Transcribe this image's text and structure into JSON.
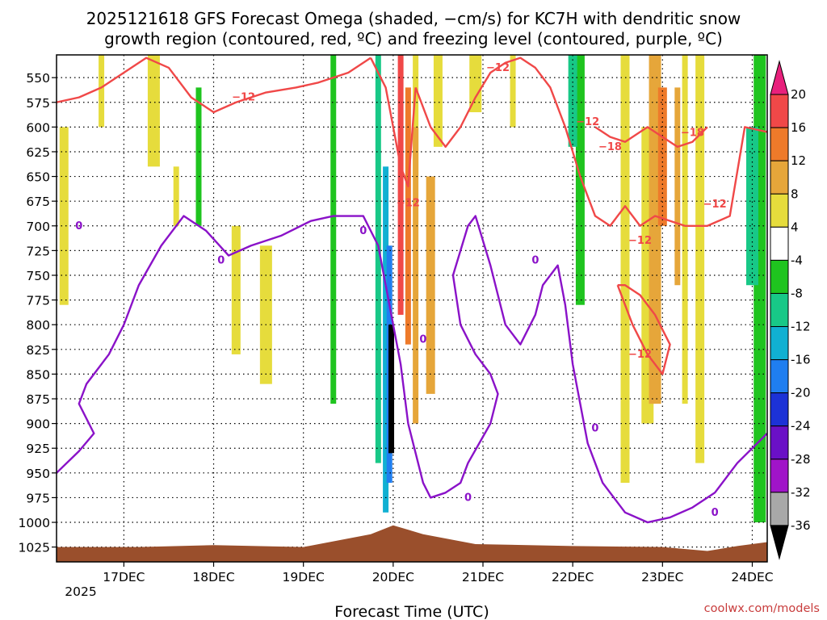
{
  "chart_data": {
    "type": "time-height cross section",
    "title_line1": "2025121618 GFS Forecast Omega (shaded, −cm/s) for KC7H with dendritic snow",
    "title_line2": "growth region (contoured, red, ºC) and freezing level (contoured, purple, ºC)",
    "xlabel": "Forecast Time (UTC)",
    "credit": "coolwx.com/models",
    "year_label": "2025",
    "x_range_hours": [
      -12,
      178
    ],
    "x_ticks": [
      {
        "label": "17DEC",
        "hour": 6
      },
      {
        "label": "18DEC",
        "hour": 30
      },
      {
        "label": "19DEC",
        "hour": 54
      },
      {
        "label": "20DEC",
        "hour": 78
      },
      {
        "label": "21DEC",
        "hour": 102
      },
      {
        "label": "22DEC",
        "hour": 126
      },
      {
        "label": "23DEC",
        "hour": 150
      },
      {
        "label": "24DEC",
        "hour": 174
      }
    ],
    "y_range_hPa": [
      527,
      1040
    ],
    "y_ticks": [
      550,
      575,
      600,
      625,
      650,
      675,
      700,
      725,
      750,
      775,
      800,
      825,
      850,
      875,
      900,
      925,
      950,
      975,
      1000,
      1025
    ],
    "colorbar": {
      "labels": [
        "20",
        "16",
        "12",
        "8",
        "4",
        "-4",
        "-8",
        "-12",
        "-16",
        "-20",
        "-24",
        "-28",
        "-32",
        "-36"
      ],
      "colors": [
        "#e8207c",
        "#f04848",
        "#ee7a2a",
        "#e6a63a",
        "#e6dc3c",
        "#ffffff",
        "#1fc41f",
        "#18c887",
        "#11b0d2",
        "#1f7ef0",
        "#1c32d6",
        "#6a10c6",
        "#a014c8",
        "#a8a8a8",
        "#000000"
      ]
    },
    "omega_shading": [
      {
        "name": "yellow-4",
        "color": "#e6dc3c",
        "patches": [
          {
            "h": 0,
            "p0": 527,
            "p1": 600
          },
          {
            "h": -10,
            "p0": 600,
            "p1": 780
          },
          {
            "h": 14,
            "p0": 527,
            "p1": 640
          },
          {
            "h": 20,
            "p0": 640,
            "p1": 700
          },
          {
            "h": 36,
            "p0": 700,
            "p1": 830
          },
          {
            "h": 44,
            "p0": 720,
            "p1": 860
          },
          {
            "h": 84,
            "p0": 527,
            "p1": 650
          },
          {
            "h": 90,
            "p0": 527,
            "p1": 620
          },
          {
            "h": 100,
            "p0": 527,
            "p1": 585
          },
          {
            "h": 110,
            "p0": 527,
            "p1": 600
          },
          {
            "h": 140,
            "p0": 527,
            "p1": 960
          },
          {
            "h": 146,
            "p0": 600,
            "p1": 900
          },
          {
            "h": 156,
            "p0": 527,
            "p1": 880
          },
          {
            "h": 160,
            "p0": 527,
            "p1": 940
          }
        ]
      },
      {
        "name": "gold-8",
        "color": "#e6a63a",
        "patches": [
          {
            "h": 84,
            "p0": 600,
            "p1": 900
          },
          {
            "h": 88,
            "p0": 650,
            "p1": 870
          },
          {
            "h": 148,
            "p0": 527,
            "p1": 880
          },
          {
            "h": 154,
            "p0": 560,
            "p1": 760
          }
        ]
      },
      {
        "name": "orange-12",
        "color": "#ee7a2a",
        "patches": [
          {
            "h": 82,
            "p0": 560,
            "p1": 820
          },
          {
            "h": 150,
            "p0": 560,
            "p1": 700
          }
        ]
      },
      {
        "name": "red-16",
        "color": "#f04848",
        "patches": [
          {
            "h": 80,
            "p0": 527,
            "p1": 790
          }
        ]
      },
      {
        "name": "green-neg8",
        "color": "#1fc41f",
        "patches": [
          {
            "h": 62,
            "p0": 527,
            "p1": 880
          },
          {
            "h": 128,
            "p0": 527,
            "p1": 780
          },
          {
            "h": 176,
            "p0": 527,
            "p1": 1000
          },
          {
            "h": 26,
            "p0": 560,
            "p1": 700
          }
        ]
      },
      {
        "name": "teal-neg12",
        "color": "#18c887",
        "patches": [
          {
            "h": 74,
            "p0": 527,
            "p1": 940
          },
          {
            "h": 126,
            "p0": 527,
            "p1": 620
          },
          {
            "h": 174,
            "p0": 600,
            "p1": 760
          }
        ]
      },
      {
        "name": "cyan-neg16",
        "color": "#11b0d2",
        "patches": [
          {
            "h": 76,
            "p0": 640,
            "p1": 990
          }
        ]
      },
      {
        "name": "blue-neg20",
        "color": "#1f7ef0",
        "patches": [
          {
            "h": 77,
            "p0": 720,
            "p1": 960
          }
        ]
      },
      {
        "name": "black-neg36",
        "color": "#000000",
        "patches": [
          {
            "h": 77.5,
            "p0": 800,
            "p1": 930
          }
        ]
      }
    ],
    "terrain_surface_hPa": {
      "color": "#9a4f2c",
      "hours": [
        -12,
        10,
        30,
        54,
        72,
        78,
        86,
        100,
        126,
        150,
        162,
        170,
        178
      ],
      "pressure": [
        1025,
        1025,
        1023,
        1025,
        1012,
        1003,
        1012,
        1022,
        1024,
        1025,
        1029,
        1024,
        1020
      ]
    },
    "contours": [
      {
        "name": "freezing-level",
        "value": "0",
        "units": "ºC",
        "color": "#8a12c8",
        "segments": [
          {
            "hours": [
              -12,
              -6,
              -2,
              -6,
              -4,
              2,
              6,
              10,
              16,
              22,
              28,
              34,
              40,
              48,
              56,
              62,
              70,
              74,
              76
            ],
            "pressure": [
              950,
              928,
              910,
              880,
              860,
              830,
              800,
              760,
              720,
              690,
              705,
              730,
              720,
              710,
              695,
              690,
              690,
              720,
              760
            ]
          },
          {
            "hours": [
              76,
              80,
              82,
              84,
              86,
              88,
              92,
              96,
              98,
              101,
              104,
              106,
              104,
              100,
              96,
              94
            ],
            "pressure": [
              760,
              840,
              900,
              930,
              960,
              975,
              970,
              960,
              940,
              920,
              900,
              870,
              850,
              830,
              800,
              750
            ]
          },
          {
            "hours": [
              94,
              98,
              100,
              104,
              108,
              112,
              116,
              118,
              122,
              124,
              126,
              128,
              130,
              134,
              140,
              146,
              152,
              158,
              164,
              170,
              178
            ],
            "pressure": [
              750,
              700,
              690,
              740,
              800,
              820,
              790,
              760,
              740,
              780,
              840,
              880,
              920,
              960,
              990,
              1000,
              995,
              985,
              970,
              940,
              910
            ]
          }
        ],
        "labels": [
          {
            "text": "0",
            "hour": -6,
            "p": 700
          },
          {
            "text": "0",
            "hour": 32,
            "p": 735
          },
          {
            "text": "0",
            "hour": 70,
            "p": 705
          },
          {
            "text": "0",
            "hour": 86,
            "p": 815
          },
          {
            "text": "0",
            "hour": 98,
            "p": 975
          },
          {
            "text": "0",
            "hour": 116,
            "p": 735
          },
          {
            "text": "0",
            "hour": 132,
            "p": 905
          },
          {
            "text": "0",
            "hour": 164,
            "p": 990
          }
        ]
      },
      {
        "name": "dendritic-growth",
        "value": "−12",
        "units": "ºC",
        "color": "#f04848",
        "segments": [
          {
            "hours": [
              -12,
              -6,
              0,
              6,
              12,
              18,
              24,
              30,
              36,
              44,
              52,
              58,
              66,
              72
            ],
            "pressure": [
              575,
              570,
              560,
              545,
              530,
              540,
              570,
              585,
              575,
              565,
              560,
              555,
              545,
              530
            ]
          },
          {
            "hours": [
              72,
              76,
              80,
              82,
              84
            ],
            "pressure": [
              530,
              560,
              640,
              660,
              560
            ]
          },
          {
            "hours": [
              84,
              88,
              92,
              96,
              100,
              104,
              108,
              112,
              116,
              120,
              124,
              128,
              132,
              136,
              140,
              144,
              148,
              152,
              156,
              162,
              168,
              172,
              178
            ],
            "pressure": [
              560,
              600,
              620,
              600,
              570,
              545,
              535,
              530,
              540,
              560,
              600,
              650,
              690,
              700,
              680,
              700,
              690,
              695,
              700,
              700,
              690,
              600,
              605
            ]
          }
        ],
        "labels": [
          {
            "text": "−12",
            "hour": 38,
            "p": 570
          },
          {
            "text": "−12",
            "hour": 106,
            "p": 540
          },
          {
            "text": "−12",
            "hour": 130,
            "p": 595
          },
          {
            "text": "−12",
            "hour": 82,
            "p": 677
          },
          {
            "text": "−12",
            "hour": 144,
            "p": 715
          },
          {
            "text": "−12",
            "hour": 164,
            "p": 678
          },
          {
            "text": "−12",
            "hour": 144,
            "p": 830
          }
        ]
      },
      {
        "name": "dendritic-growth-upper",
        "value": "−18",
        "units": "ºC",
        "color": "#f04848",
        "segments": [
          {
            "hours": [
              132,
              136,
              140,
              146,
              150,
              154,
              158,
              162
            ],
            "pressure": [
              600,
              610,
              615,
              600,
              610,
              620,
              615,
              600
            ]
          },
          {
            "hours": [
              138,
              142,
              146,
              150,
              152,
              148,
              144,
              140,
              138
            ],
            "pressure": [
              760,
              800,
              830,
              850,
              820,
              790,
              770,
              760,
              760
            ]
          }
        ],
        "labels": [
          {
            "text": "−18",
            "hour": 136,
            "p": 620
          },
          {
            "text": "−18",
            "hour": 158,
            "p": 606
          }
        ]
      }
    ]
  }
}
